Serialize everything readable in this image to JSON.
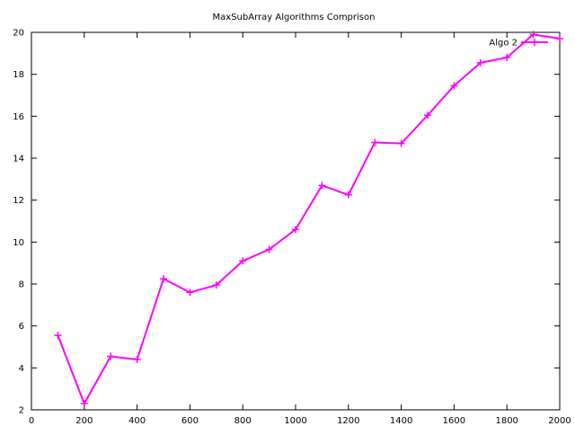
{
  "chart_data": {
    "type": "line",
    "title": "MaxSubArray Algorithms Comprison",
    "xlabel": "",
    "ylabel": "",
    "xlim": [
      0,
      2000
    ],
    "ylim": [
      2,
      20
    ],
    "xticks": [
      0,
      200,
      400,
      600,
      800,
      1000,
      1200,
      1400,
      1600,
      1800,
      2000
    ],
    "yticks": [
      2,
      4,
      6,
      8,
      10,
      12,
      14,
      16,
      18,
      20
    ],
    "grid": false,
    "legend_position": "top-right",
    "series": [
      {
        "name": "Algo 2",
        "color": "#ff00ff",
        "marker": "plus",
        "x": [
          100,
          200,
          300,
          400,
          500,
          600,
          700,
          800,
          900,
          1000,
          1100,
          1200,
          1300,
          1400,
          1500,
          1600,
          1700,
          1800,
          1900,
          2000
        ],
        "y": [
          5.55,
          2.3,
          4.55,
          4.4,
          8.25,
          7.6,
          7.95,
          9.1,
          9.65,
          10.6,
          12.7,
          12.25,
          14.75,
          14.7,
          16.05,
          17.45,
          18.55,
          18.8,
          19.9,
          19.7
        ]
      }
    ]
  }
}
